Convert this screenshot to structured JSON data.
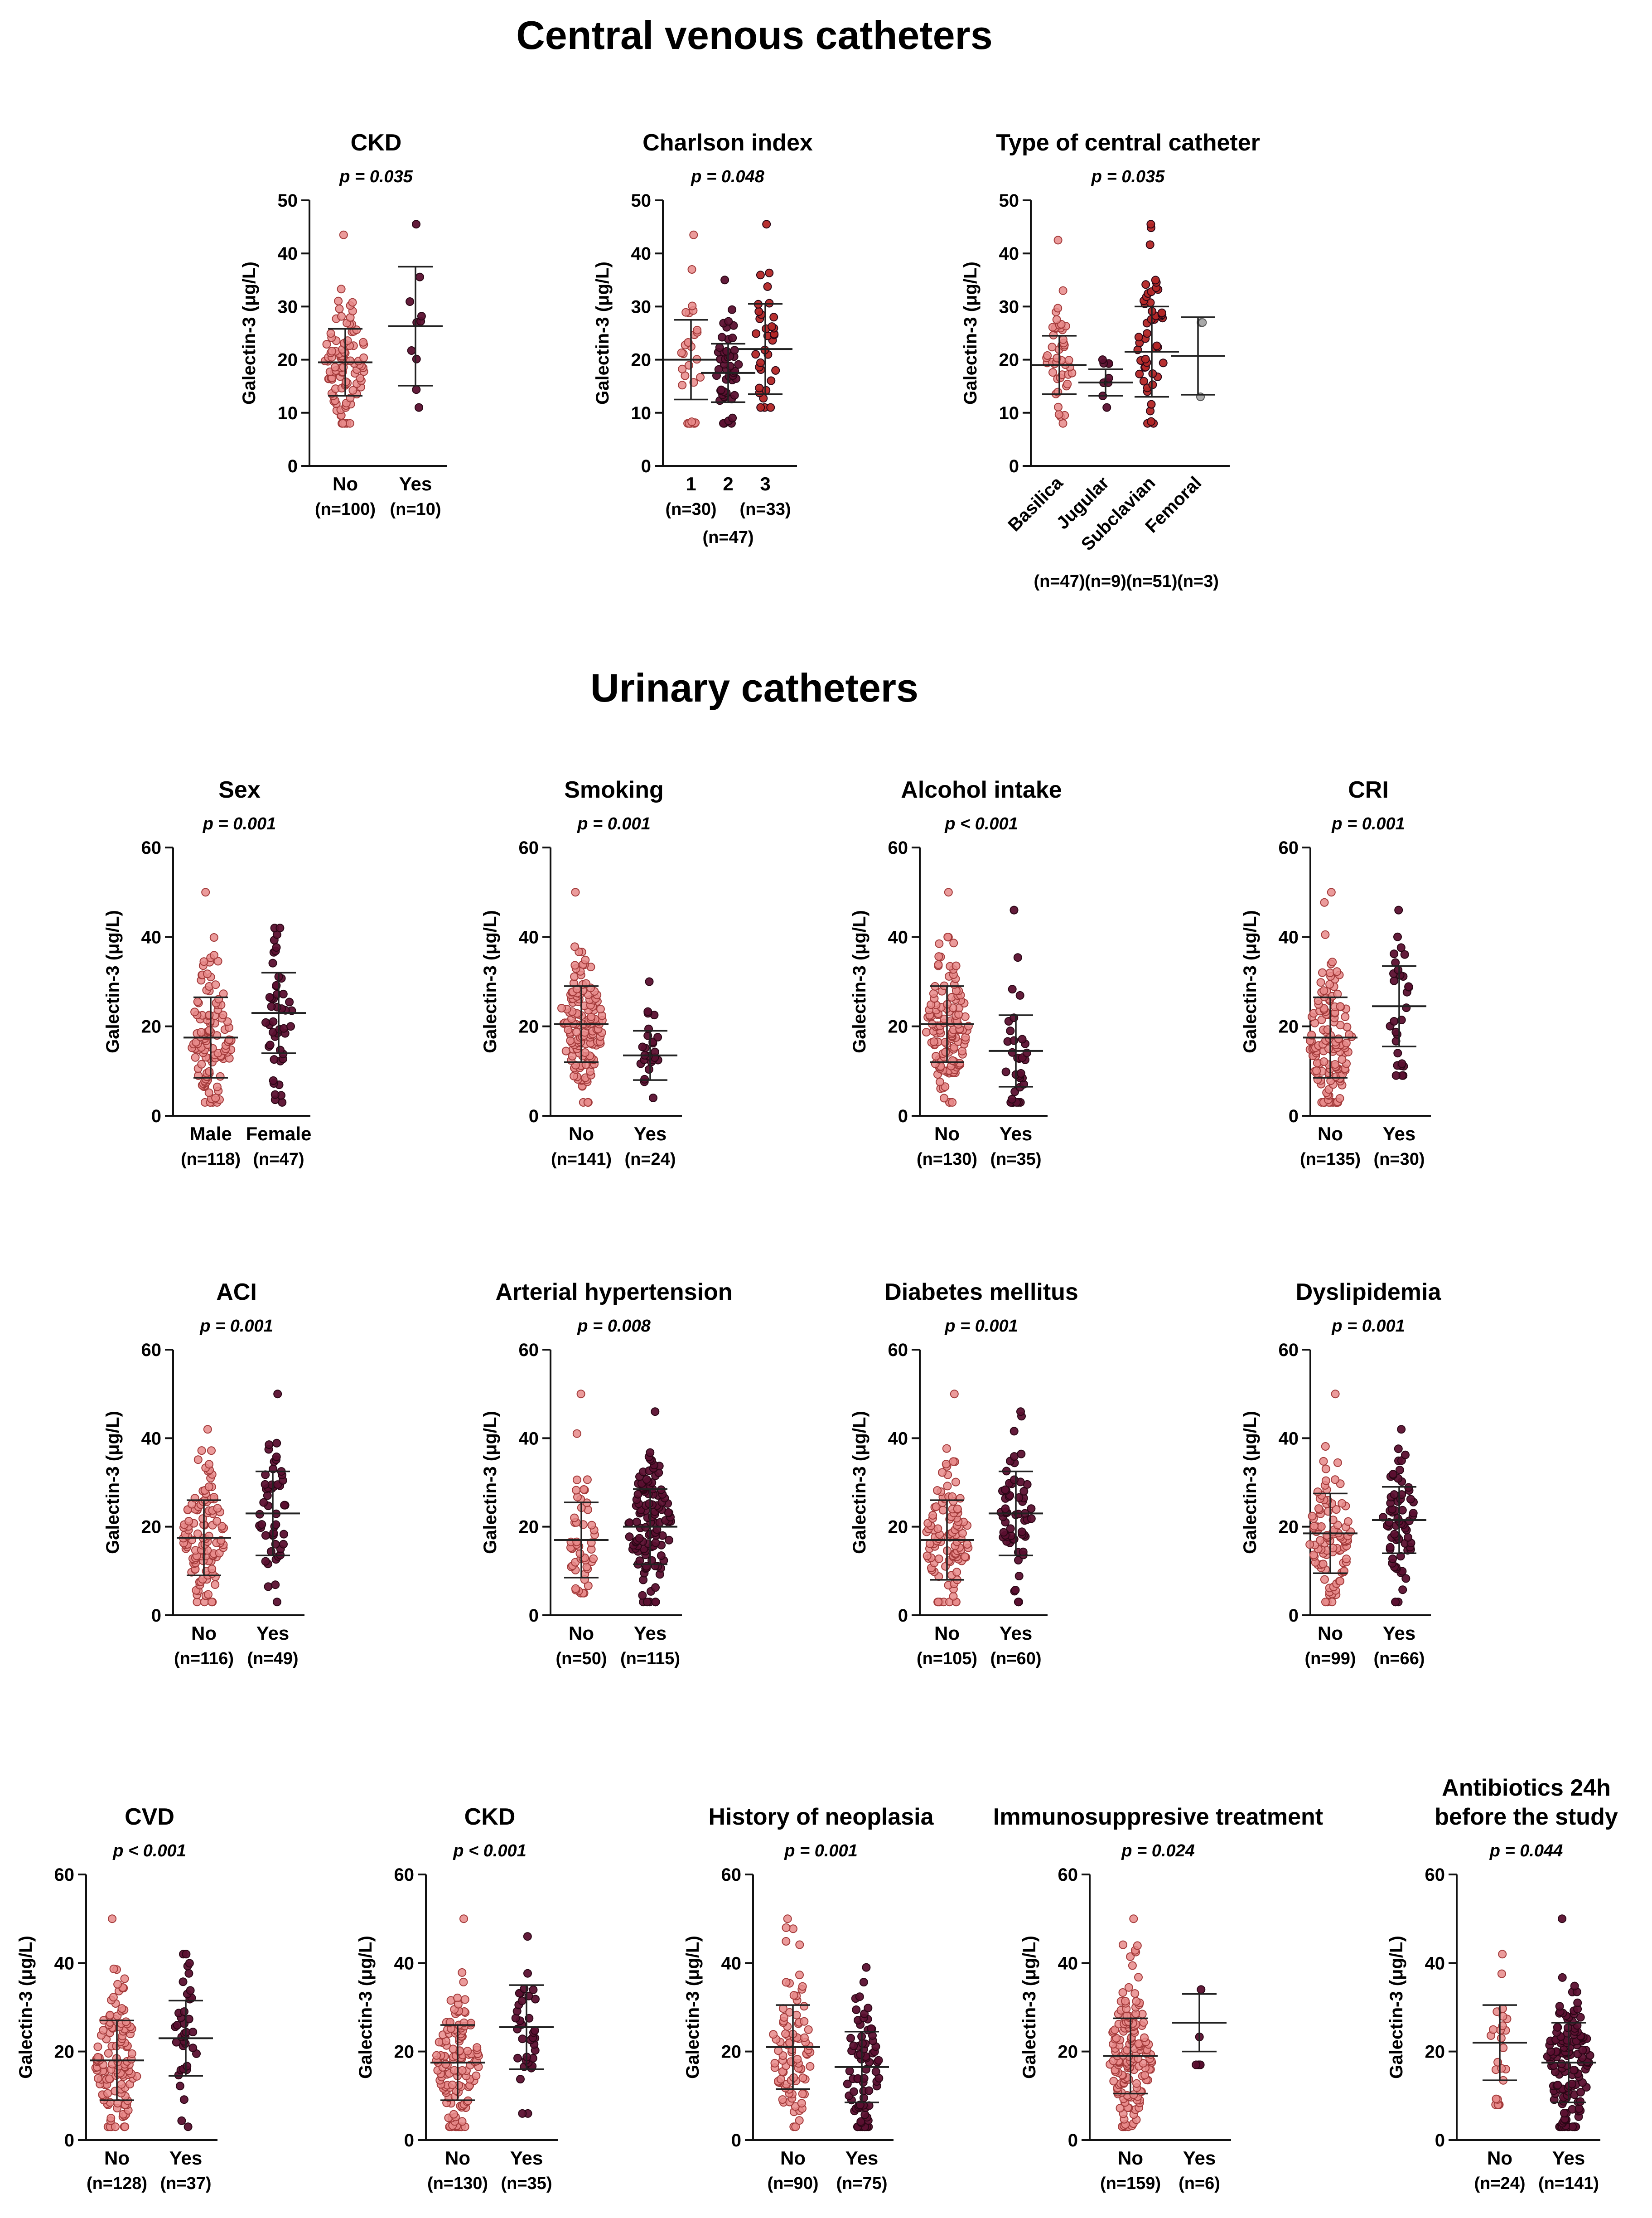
{
  "sections": [
    {
      "title": "Central venous catheters"
    },
    {
      "title": "Urinary catheters"
    }
  ],
  "colors": {
    "no": "#e88a8a",
    "no_edge": "#a33a3a",
    "yes": "#5b1030",
    "yes_edge": "#2a0615",
    "red_mid": "#b32626",
    "grey": "#aaaaaa",
    "axis": "#111111"
  },
  "chart_data": [
    {
      "type": "scatter",
      "title": [
        "CKD"
      ],
      "pvalue": "p = 0.035",
      "ylabel": "Galectin-3 (μg/L)",
      "ylim": [
        0,
        50
      ],
      "yticks": [
        0,
        10,
        20,
        30,
        40,
        50
      ],
      "rotate_labels": false,
      "groups": [
        {
          "label": "No",
          "n": "(n=100)",
          "count": 100,
          "mean": 19.5,
          "sd": 6.3,
          "min": 8,
          "max": 43.5,
          "color": "no"
        },
        {
          "label": "Yes",
          "n": "(n=10)",
          "count": 10,
          "mean": 26.3,
          "sd": 11.2,
          "min": 11,
          "max": 45.5,
          "color": "yes"
        }
      ]
    },
    {
      "type": "scatter",
      "title": [
        "Charlson index"
      ],
      "pvalue": "p = 0.048",
      "ylabel": "Galectin-3 (μg/L)",
      "ylim": [
        0,
        50
      ],
      "yticks": [
        0,
        10,
        20,
        30,
        40,
        50
      ],
      "rotate_labels": false,
      "groups": [
        {
          "label": "1",
          "n": "(n=30)",
          "count": 30,
          "mean": 20.0,
          "sd": 7.5,
          "min": 8,
          "max": 43.5,
          "color": "no"
        },
        {
          "label": "2",
          "n": "(n=47)",
          "count": 47,
          "mean": 17.5,
          "sd": 5.5,
          "min": 8,
          "max": 35,
          "color": "yes"
        },
        {
          "label": "3",
          "n": "(n=33)",
          "count": 33,
          "mean": 22.0,
          "sd": 8.5,
          "min": 11,
          "max": 45.5,
          "color": "red_mid"
        }
      ]
    },
    {
      "type": "scatter",
      "title": [
        "Type of central catheter"
      ],
      "pvalue": "p = 0.035",
      "ylabel": "Galectin-3 (μg/L)",
      "ylim": [
        0,
        50
      ],
      "yticks": [
        0,
        10,
        20,
        30,
        40,
        50
      ],
      "rotate_labels": true,
      "groups": [
        {
          "label": "Basilica",
          "n": "(n=47)",
          "count": 47,
          "mean": 19.0,
          "sd": 5.5,
          "min": 8,
          "max": 42.5,
          "color": "no"
        },
        {
          "label": "Jugular",
          "n": "(n=9)",
          "count": 9,
          "mean": 15.7,
          "sd": 2.5,
          "min": 11,
          "max": 20,
          "color": "yes"
        },
        {
          "label": "Subclavian",
          "n": "(n=51)",
          "count": 51,
          "mean": 21.5,
          "sd": 8.5,
          "min": 8,
          "max": 45.5,
          "color": "red_mid"
        },
        {
          "label": "Femoral",
          "n": "(n=3)",
          "count": 3,
          "mean": 20.7,
          "sd": 7.3,
          "min": 13,
          "max": 27,
          "color": "grey"
        }
      ]
    },
    {
      "type": "scatter",
      "title": [
        "Sex"
      ],
      "pvalue": "p = 0.001",
      "ylabel": "Galectin-3 (μg/L)",
      "ylim": [
        0,
        60
      ],
      "yticks": [
        0,
        20,
        40,
        60
      ],
      "rotate_labels": false,
      "groups": [
        {
          "label": "Male",
          "n": "(n=118)",
          "count": 118,
          "mean": 17.5,
          "sd": 9.0,
          "min": 3,
          "max": 50,
          "color": "no"
        },
        {
          "label": "Female",
          "n": "(n=47)",
          "count": 47,
          "mean": 23.0,
          "sd": 9.0,
          "min": 3,
          "max": 42,
          "color": "yes"
        }
      ]
    },
    {
      "type": "scatter",
      "title": [
        "Smoking"
      ],
      "pvalue": "p = 0.001",
      "ylabel": "Galectin-3 (μg/L)",
      "ylim": [
        0,
        60
      ],
      "yticks": [
        0,
        20,
        40,
        60
      ],
      "rotate_labels": false,
      "groups": [
        {
          "label": "No",
          "n": "(n=141)",
          "count": 141,
          "mean": 20.5,
          "sd": 8.5,
          "min": 3,
          "max": 50,
          "color": "no"
        },
        {
          "label": "Yes",
          "n": "(n=24)",
          "count": 24,
          "mean": 13.5,
          "sd": 5.5,
          "min": 4,
          "max": 30,
          "color": "yes"
        }
      ]
    },
    {
      "type": "scatter",
      "title": [
        "Alcohol intake"
      ],
      "pvalue": "p < 0.001",
      "ylabel": "Galectin-3 (μg/L)",
      "ylim": [
        0,
        60
      ],
      "yticks": [
        0,
        20,
        40,
        60
      ],
      "rotate_labels": false,
      "groups": [
        {
          "label": "No",
          "n": "(n=130)",
          "count": 130,
          "mean": 20.5,
          "sd": 8.5,
          "min": 3,
          "max": 50,
          "color": "no"
        },
        {
          "label": "Yes",
          "n": "(n=35)",
          "count": 35,
          "mean": 14.5,
          "sd": 8.0,
          "min": 3,
          "max": 46,
          "color": "yes"
        }
      ]
    },
    {
      "type": "scatter",
      "title": [
        "CRI"
      ],
      "pvalue": "p = 0.001",
      "ylabel": "Galectin-3 (μg/L)",
      "ylim": [
        0,
        60
      ],
      "yticks": [
        0,
        20,
        40,
        60
      ],
      "rotate_labels": false,
      "groups": [
        {
          "label": "No",
          "n": "(n=135)",
          "count": 135,
          "mean": 17.5,
          "sd": 9.0,
          "min": 3,
          "max": 50,
          "color": "no"
        },
        {
          "label": "Yes",
          "n": "(n=30)",
          "count": 30,
          "mean": 24.5,
          "sd": 9.0,
          "min": 9,
          "max": 46,
          "color": "yes"
        }
      ]
    },
    {
      "type": "scatter",
      "title": [
        "ACI"
      ],
      "pvalue": "p = 0.001",
      "ylabel": "Galectin-3 (μg/L)",
      "ylim": [
        0,
        60
      ],
      "yticks": [
        0,
        20,
        40,
        60
      ],
      "rotate_labels": false,
      "groups": [
        {
          "label": "No",
          "n": "(n=116)",
          "count": 116,
          "mean": 17.5,
          "sd": 8.5,
          "min": 3,
          "max": 42,
          "color": "no"
        },
        {
          "label": "Yes",
          "n": "(n=49)",
          "count": 49,
          "mean": 23.0,
          "sd": 9.5,
          "min": 3,
          "max": 50,
          "color": "yes"
        }
      ]
    },
    {
      "type": "scatter",
      "title": [
        "Arterial hypertension"
      ],
      "pvalue": "p = 0.008",
      "ylabel": "Galectin-3 (μg/L)",
      "ylim": [
        0,
        60
      ],
      "yticks": [
        0,
        20,
        40,
        60
      ],
      "rotate_labels": false,
      "groups": [
        {
          "label": "No",
          "n": "(n=50)",
          "count": 50,
          "mean": 17.0,
          "sd": 8.5,
          "min": 5,
          "max": 50,
          "color": "no"
        },
        {
          "label": "Yes",
          "n": "(n=115)",
          "count": 115,
          "mean": 20.0,
          "sd": 8.5,
          "min": 3,
          "max": 46,
          "color": "yes"
        }
      ]
    },
    {
      "type": "scatter",
      "title": [
        "Diabetes mellitus"
      ],
      "pvalue": "p = 0.001",
      "ylabel": "Galectin-3 (μg/L)",
      "ylim": [
        0,
        60
      ],
      "yticks": [
        0,
        20,
        40,
        60
      ],
      "rotate_labels": false,
      "groups": [
        {
          "label": "No",
          "n": "(n=105)",
          "count": 105,
          "mean": 17.0,
          "sd": 9.0,
          "min": 3,
          "max": 50,
          "color": "no"
        },
        {
          "label": "Yes",
          "n": "(n=60)",
          "count": 60,
          "mean": 23.0,
          "sd": 9.5,
          "min": 3,
          "max": 46,
          "color": "yes"
        }
      ]
    },
    {
      "type": "scatter",
      "title": [
        "Dyslipidemia"
      ],
      "pvalue": "p = 0.001",
      "ylabel": "Galectin-3 (μg/L)",
      "ylim": [
        0,
        60
      ],
      "yticks": [
        0,
        20,
        40,
        60
      ],
      "rotate_labels": false,
      "groups": [
        {
          "label": "No",
          "n": "(n=99)",
          "count": 99,
          "mean": 18.5,
          "sd": 9.0,
          "min": 3,
          "max": 50,
          "color": "no"
        },
        {
          "label": "Yes",
          "n": "(n=66)",
          "count": 66,
          "mean": 21.5,
          "sd": 7.5,
          "min": 3,
          "max": 42,
          "color": "yes"
        }
      ]
    },
    {
      "type": "scatter",
      "title": [
        "CVD"
      ],
      "pvalue": "p < 0.001",
      "ylabel": "Galectin-3 (μg/L)",
      "ylim": [
        0,
        60
      ],
      "yticks": [
        0,
        20,
        40,
        60
      ],
      "rotate_labels": false,
      "groups": [
        {
          "label": "No",
          "n": "(n=128)",
          "count": 128,
          "mean": 18.0,
          "sd": 9.0,
          "min": 3,
          "max": 50,
          "color": "no"
        },
        {
          "label": "Yes",
          "n": "(n=37)",
          "count": 37,
          "mean": 23.0,
          "sd": 8.5,
          "min": 3,
          "max": 42,
          "color": "yes"
        }
      ]
    },
    {
      "type": "scatter",
      "title": [
        "CKD"
      ],
      "pvalue": "p < 0.001",
      "ylabel": "Galectin-3 (μg/L)",
      "ylim": [
        0,
        60
      ],
      "yticks": [
        0,
        20,
        40,
        60
      ],
      "rotate_labels": false,
      "groups": [
        {
          "label": "No",
          "n": "(n=130)",
          "count": 130,
          "mean": 17.5,
          "sd": 8.5,
          "min": 3,
          "max": 50,
          "color": "no"
        },
        {
          "label": "Yes",
          "n": "(n=35)",
          "count": 35,
          "mean": 25.5,
          "sd": 9.5,
          "min": 6,
          "max": 46,
          "color": "yes"
        }
      ]
    },
    {
      "type": "scatter",
      "title": [
        "History of neoplasia"
      ],
      "pvalue": "p = 0.001",
      "ylabel": "Galectin-3 (μg/L)",
      "ylim": [
        0,
        60
      ],
      "yticks": [
        0,
        20,
        40,
        60
      ],
      "rotate_labels": false,
      "groups": [
        {
          "label": "No",
          "n": "(n=90)",
          "count": 90,
          "mean": 21.0,
          "sd": 9.5,
          "min": 3,
          "max": 50,
          "color": "no"
        },
        {
          "label": "Yes",
          "n": "(n=75)",
          "count": 75,
          "mean": 16.5,
          "sd": 8.0,
          "min": 3,
          "max": 39,
          "color": "yes"
        }
      ]
    },
    {
      "type": "scatter",
      "title": [
        "Immunosuppresive treatment"
      ],
      "pvalue": "p = 0.024",
      "ylabel": "Galectin-3 (μg/L)",
      "ylim": [
        0,
        60
      ],
      "yticks": [
        0,
        20,
        40,
        60
      ],
      "rotate_labels": false,
      "groups": [
        {
          "label": "No",
          "n": "(n=159)",
          "count": 159,
          "mean": 19.0,
          "sd": 8.5,
          "min": 3,
          "max": 50,
          "color": "no"
        },
        {
          "label": "Yes",
          "n": "(n=6)",
          "count": 6,
          "mean": 26.5,
          "sd": 6.5,
          "min": 17,
          "max": 34,
          "color": "yes"
        }
      ]
    },
    {
      "type": "scatter",
      "title": [
        "Antibiotics 24h",
        "before the study"
      ],
      "pvalue": "p = 0.044",
      "ylabel": "Galectin-3 (μg/L)",
      "ylim": [
        0,
        60
      ],
      "yticks": [
        0,
        20,
        40,
        60
      ],
      "rotate_labels": false,
      "groups": [
        {
          "label": "No",
          "n": "(n=24)",
          "count": 24,
          "mean": 22.0,
          "sd": 8.5,
          "min": 8,
          "max": 42,
          "color": "no"
        },
        {
          "label": "Yes",
          "n": "(n=141)",
          "count": 141,
          "mean": 17.5,
          "sd": 9.0,
          "min": 3,
          "max": 50,
          "color": "yes"
        }
      ]
    }
  ]
}
